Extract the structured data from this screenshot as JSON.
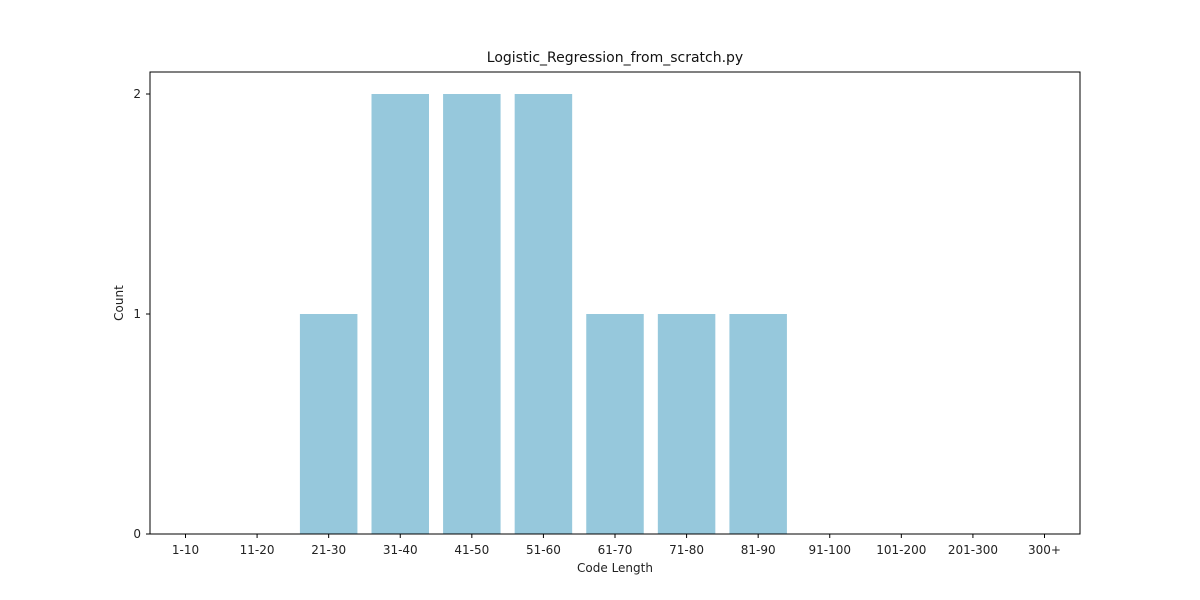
{
  "chart_data": {
    "type": "bar",
    "title": "Logistic_Regression_from_scratch.py",
    "xlabel": "Code Length",
    "ylabel": "Count",
    "categories": [
      "1-10",
      "11-20",
      "21-30",
      "31-40",
      "41-50",
      "51-60",
      "61-70",
      "71-80",
      "81-90",
      "91-100",
      "101-200",
      "201-300",
      "300+"
    ],
    "values": [
      0,
      0,
      1,
      2,
      2,
      2,
      1,
      1,
      1,
      0,
      0,
      0,
      0
    ],
    "ylim": [
      0,
      2.1
    ],
    "yticks": [
      0,
      1,
      2
    ],
    "grid": false,
    "legend": "none",
    "colors": {
      "bar": "#96c8dc",
      "axes": "#000000",
      "background": "#ffffff"
    }
  }
}
